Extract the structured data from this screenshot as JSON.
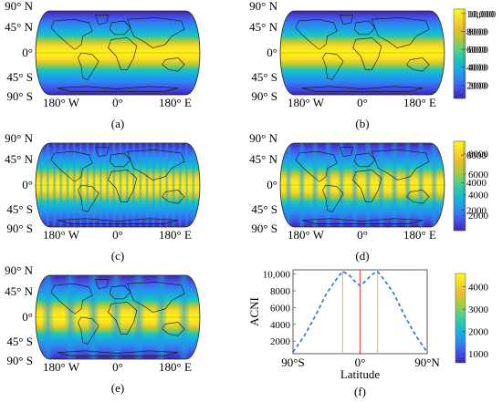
{
  "lat_ticks": [
    "90° N",
    "45° N",
    "0°",
    "45° S",
    "90° S"
  ],
  "lon_ticks": [
    "180° W",
    "0°",
    "180° E"
  ],
  "colormap": [
    "#3e26a8",
    "#4353e8",
    "#2d86f1",
    "#17aee0",
    "#23c6b4",
    "#5fd080",
    "#b2c936",
    "#e7be2a",
    "#fbd826",
    "#f9fb15"
  ],
  "panels": [
    {
      "caption": "(a)",
      "colorbar": {
        "ticks": [
          "10,000",
          "8000",
          "6000",
          "4000",
          "2000"
        ],
        "range": [
          500,
          10500
        ]
      },
      "bands": 0
    },
    {
      "caption": "(b)",
      "colorbar": {
        "ticks": [
          "10,000",
          "8000",
          "6000",
          "4000",
          "2000"
        ],
        "range": [
          500,
          10500
        ]
      },
      "bands": 0
    },
    {
      "caption": "(c)",
      "colorbar": {
        "ticks": [
          "8000",
          "6000",
          "4000",
          "2000"
        ],
        "range": [
          500,
          9200
        ]
      },
      "bands": 24
    },
    {
      "caption": "(d)",
      "colorbar": {
        "ticks": [
          "6000",
          "4000",
          "2000"
        ],
        "range": [
          500,
          7000
        ]
      },
      "bands": 12
    },
    {
      "caption": "(e)",
      "colorbar": {
        "ticks": [
          "4000",
          "3000",
          "2000",
          "1000"
        ],
        "range": [
          600,
          4600
        ]
      },
      "bands": 7
    }
  ],
  "line_panel": {
    "caption": "(f)",
    "chart_data": {
      "type": "line",
      "xlabel": "Latitude",
      "ylabel": "ACNI",
      "x_tick_labels": [
        "90°S",
        "0°",
        "90°N"
      ],
      "y_tick_labels": [
        "10,000",
        "8000",
        "6000",
        "4000",
        "2000"
      ],
      "xlim": [
        -90,
        90
      ],
      "ylim": [
        500,
        10500
      ],
      "series": [
        {
          "x": [
            -90,
            -75,
            -60,
            -45,
            -30,
            -23.5,
            -15,
            -8,
            0,
            8,
            15,
            23.5,
            30,
            45,
            60,
            75,
            90
          ],
          "y": [
            700,
            2600,
            5000,
            7700,
            9600,
            10300,
            9900,
            9200,
            8600,
            9200,
            9900,
            10300,
            9600,
            7700,
            5000,
            2600,
            700
          ],
          "color": "#1f77d4",
          "style": "dashed"
        }
      ],
      "reference_lines": [
        {
          "x": -23.5,
          "color": "#f0a830"
        },
        {
          "x": 0,
          "color": "#e83030"
        },
        {
          "x": 23.5,
          "color": "#f0a830"
        }
      ]
    }
  }
}
